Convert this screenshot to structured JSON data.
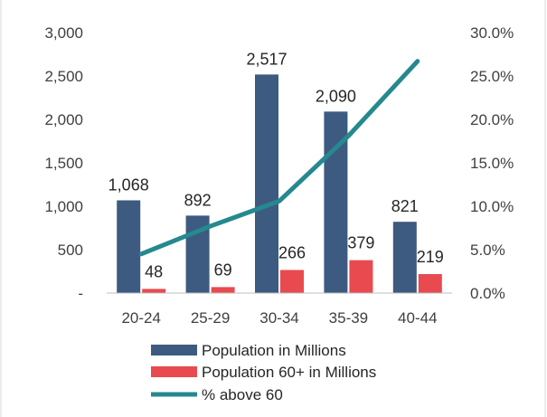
{
  "chart_data": {
    "type": "bar+line",
    "categories": [
      "20-24",
      "25-29",
      "30-34",
      "35-39",
      "40-44"
    ],
    "series": [
      {
        "name": "Population in Millions",
        "type": "bar",
        "axis": "left",
        "values": [
          1068,
          892,
          2517,
          2090,
          821
        ],
        "labels": [
          "1,068",
          "892",
          "2,517",
          "2,090",
          "821"
        ],
        "color": "#3d5a80"
      },
      {
        "name": "Population 60+ in Millions",
        "type": "bar",
        "axis": "left",
        "values": [
          48,
          69,
          266,
          379,
          219
        ],
        "labels": [
          "48",
          "69",
          "266",
          "379",
          "219"
        ],
        "color": "#e84a4f"
      },
      {
        "name": "% above 60",
        "type": "line",
        "axis": "right",
        "values": [
          4.5,
          7.7,
          10.6,
          18.1,
          26.7
        ],
        "color": "#25898f"
      }
    ],
    "y_left": {
      "ylim": [
        0,
        3000
      ],
      "ticks": [
        0,
        500,
        1000,
        1500,
        2000,
        2500,
        3000
      ],
      "tick_labels": [
        "-",
        "500",
        "1,000",
        "1,500",
        "2,000",
        "2,500",
        "3,000"
      ]
    },
    "y_right": {
      "ylim": [
        0,
        30
      ],
      "ticks": [
        0,
        5,
        10,
        15,
        20,
        25,
        30
      ],
      "tick_labels": [
        "0.0%",
        "5.0%",
        "10.0%",
        "15.0%",
        "20.0%",
        "25.0%",
        "30.0%"
      ]
    },
    "legend_position": "bottom",
    "grid": false
  }
}
